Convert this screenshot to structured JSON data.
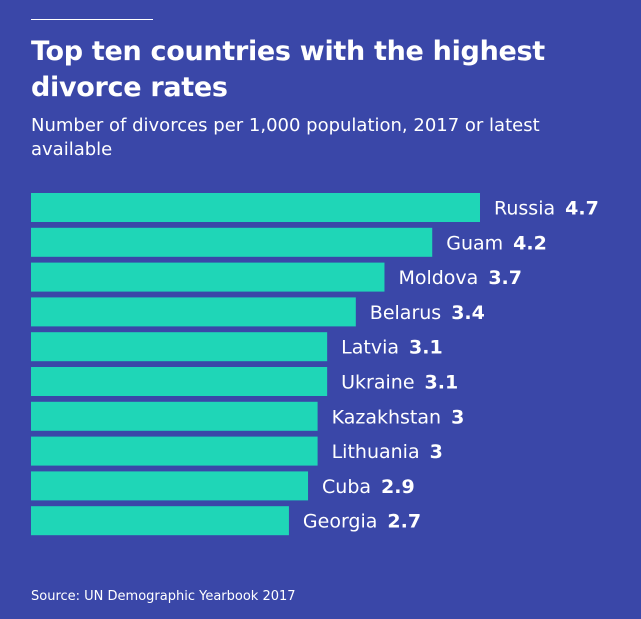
{
  "chart_data": {
    "type": "bar",
    "orientation": "horizontal",
    "title": "Top ten countries with the highest divorce rates",
    "subtitle": "Number of divorces per 1,000 population, 2017 or latest available",
    "categories": [
      "Russia",
      "Guam",
      "Moldova",
      "Belarus",
      "Latvia",
      "Ukraine",
      "Kazakhstan",
      "Lithuania",
      "Cuba",
      "Georgia"
    ],
    "values": [
      4.7,
      4.2,
      3.7,
      3.4,
      3.1,
      3.1,
      3,
      3,
      2.9,
      2.7
    ],
    "value_labels": [
      "4.7",
      "4.2",
      "3.7",
      "3.4",
      "3.1",
      "3.1",
      "3",
      "3",
      "2.9",
      "2.7"
    ],
    "grid": false,
    "legend": "none",
    "source": "Source: UN Demographic Yearbook 2017",
    "colors": {
      "background": "#3a47a8",
      "bar": "#1fd6b7",
      "text": "#ffffff"
    }
  }
}
